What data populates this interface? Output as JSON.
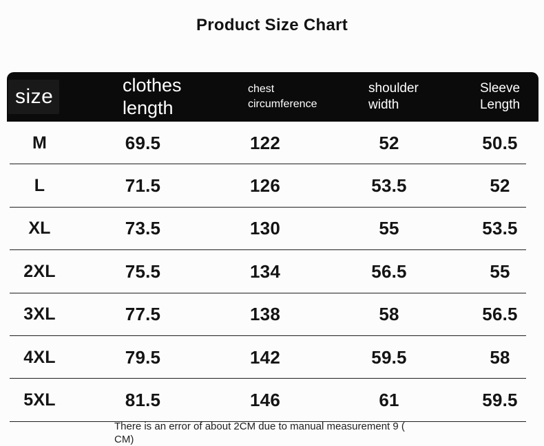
{
  "title": "Product Size Chart",
  "table": {
    "columns": [
      {
        "key": "size",
        "label_lines": [
          "size"
        ]
      },
      {
        "key": "clothes_length",
        "label_lines": [
          "clothes",
          "length"
        ]
      },
      {
        "key": "chest_circumference",
        "label_lines": [
          "chest",
          "circumference"
        ]
      },
      {
        "key": "shoulder_width",
        "label_lines": [
          "shoulder",
          "width"
        ]
      },
      {
        "key": "sleeve_length",
        "label_lines": [
          "Sleeve",
          "Length"
        ]
      }
    ],
    "rows": [
      {
        "size": "M",
        "clothes_length": "69.5",
        "chest_circumference": "122",
        "shoulder_width": "52",
        "sleeve_length": "50.5"
      },
      {
        "size": "L",
        "clothes_length": "71.5",
        "chest_circumference": "126",
        "shoulder_width": "53.5",
        "sleeve_length": "52"
      },
      {
        "size": "XL",
        "clothes_length": "73.5",
        "chest_circumference": "130",
        "shoulder_width": "55",
        "sleeve_length": "53.5"
      },
      {
        "size": "2XL",
        "clothes_length": "75.5",
        "chest_circumference": "134",
        "shoulder_width": "56.5",
        "sleeve_length": "55"
      },
      {
        "size": "3XL",
        "clothes_length": "77.5",
        "chest_circumference": "138",
        "shoulder_width": "58",
        "sleeve_length": "56.5"
      },
      {
        "size": "4XL",
        "clothes_length": "79.5",
        "chest_circumference": "142",
        "shoulder_width": "59.5",
        "sleeve_length": "58"
      },
      {
        "size": "5XL",
        "clothes_length": "81.5",
        "chest_circumference": "146",
        "shoulder_width": "61",
        "sleeve_length": "59.5"
      }
    ]
  },
  "footnote": {
    "line1": "There is an error of about 2CM due to manual measurement 9 (",
    "line2": "CM)"
  },
  "colors": {
    "header_bg": "#0b0b0b",
    "size_cell_bg": "#191919",
    "header_text": "#ffffff",
    "body_text": "#141414",
    "divider": "#1e1e1e",
    "page_bg": "#fcfcfc"
  },
  "chart_data": {
    "type": "table",
    "title": "Product Size Chart",
    "columns": [
      "size",
      "clothes length",
      "chest circumference",
      "shoulder width",
      "Sleeve Length"
    ],
    "rows": [
      [
        "M",
        69.5,
        122,
        52,
        50.5
      ],
      [
        "L",
        71.5,
        126,
        53.5,
        52
      ],
      [
        "XL",
        73.5,
        130,
        55,
        53.5
      ],
      [
        "2XL",
        75.5,
        134,
        56.5,
        55
      ],
      [
        "3XL",
        77.5,
        138,
        58,
        56.5
      ],
      [
        "4XL",
        79.5,
        142,
        59.5,
        58
      ],
      [
        "5XL",
        81.5,
        146,
        61,
        59.5
      ]
    ],
    "footnote": "There is an error of about 2CM due to manual measurement 9 (CM)",
    "units": "CM",
    "layout": "black header bar with rounded top corners, thin row dividers, no column borders"
  }
}
